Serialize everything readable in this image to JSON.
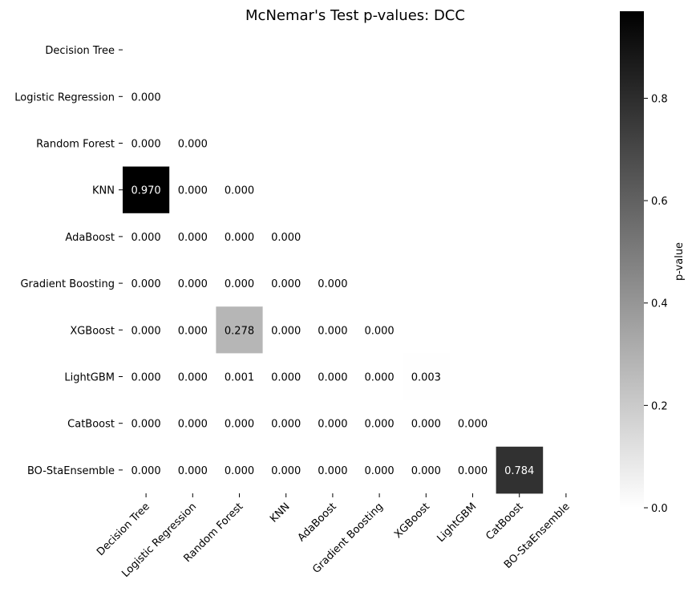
{
  "chart_data": {
    "type": "heatmap",
    "title": "McNemar's Test p-values: DCC",
    "labels": [
      "Decision Tree",
      "Logistic Regression",
      "Random Forest",
      "KNN",
      "AdaBoost",
      "Gradient Boosting",
      "XGBoost",
      "LightGBM",
      "CatBoost",
      "BO-StaEnsemble"
    ],
    "lower_triangle_values": [
      [],
      [
        0.0
      ],
      [
        0.0,
        0.0
      ],
      [
        0.97,
        0.0,
        0.0
      ],
      [
        0.0,
        0.0,
        0.0,
        0.0
      ],
      [
        0.0,
        0.0,
        0.0,
        0.0,
        0.0
      ],
      [
        0.0,
        0.0,
        0.278,
        0.0,
        0.0,
        0.0
      ],
      [
        0.0,
        0.0,
        0.001,
        0.0,
        0.0,
        0.0,
        0.003
      ],
      [
        0.0,
        0.0,
        0.0,
        0.0,
        0.0,
        0.0,
        0.0,
        0.0
      ],
      [
        0.0,
        0.0,
        0.0,
        0.0,
        0.0,
        0.0,
        0.0,
        0.0,
        0.784
      ]
    ],
    "annotations": [
      [
        "",
        "",
        "",
        "",
        "",
        "",
        "",
        "",
        "",
        ""
      ],
      [
        "0.000",
        "",
        "",
        "",
        "",
        "",
        "",
        "",
        "",
        ""
      ],
      [
        "0.000",
        "0.000",
        "",
        "",
        "",
        "",
        "",
        "",
        "",
        ""
      ],
      [
        "0.970",
        "0.000",
        "0.000",
        "",
        "",
        "",
        "",
        "",
        "",
        ""
      ],
      [
        "0.000",
        "0.000",
        "0.000",
        "0.000",
        "",
        "",
        "",
        "",
        "",
        ""
      ],
      [
        "0.000",
        "0.000",
        "0.000",
        "0.000",
        "0.000",
        "",
        "",
        "",
        "",
        ""
      ],
      [
        "0.000",
        "0.000",
        "0.278",
        "0.000",
        "0.000",
        "0.000",
        "",
        "",
        "",
        ""
      ],
      [
        "0.000",
        "0.000",
        "0.001",
        "0.000",
        "0.000",
        "0.000",
        "0.003",
        "",
        "",
        ""
      ],
      [
        "0.000",
        "0.000",
        "0.000",
        "0.000",
        "0.000",
        "0.000",
        "0.000",
        "0.000",
        "",
        ""
      ],
      [
        "0.000",
        "0.000",
        "0.000",
        "0.000",
        "0.000",
        "0.000",
        "0.000",
        "0.000",
        "0.784",
        ""
      ]
    ],
    "colormap": "Greys",
    "vmin": 0.0,
    "vmax": 0.97,
    "colorbar": {
      "label": "p-value",
      "ticks": [
        0.0,
        0.2,
        0.4,
        0.6,
        0.8
      ],
      "tick_labels": [
        "0.0",
        "0.2",
        "0.4",
        "0.6",
        "0.8"
      ]
    },
    "mask": "upper_triangle_and_diagonal"
  }
}
